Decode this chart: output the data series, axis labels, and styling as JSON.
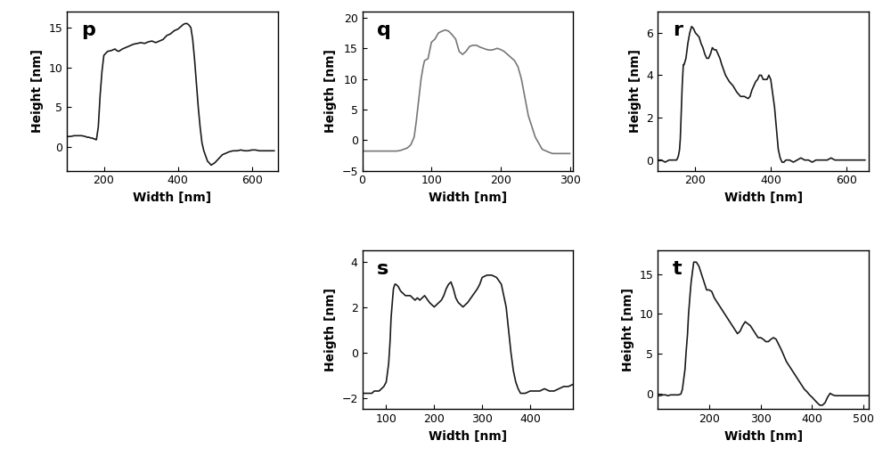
{
  "p": {
    "label": "p",
    "xlabel": "Width [nm]",
    "ylabel": "Height [nm]",
    "xlim": [
      100,
      670
    ],
    "ylim": [
      -3,
      17
    ],
    "yticks": [
      0,
      5,
      10,
      15
    ],
    "xticks": [
      200,
      400,
      600
    ],
    "line_color": "#1a1a1a",
    "x": [
      100,
      110,
      120,
      130,
      140,
      150,
      155,
      160,
      165,
      170,
      172,
      175,
      178,
      180,
      185,
      190,
      195,
      200,
      210,
      220,
      225,
      230,
      235,
      240,
      250,
      260,
      270,
      280,
      290,
      300,
      310,
      320,
      330,
      340,
      350,
      360,
      370,
      380,
      390,
      395,
      400,
      405,
      410,
      415,
      420,
      425,
      430,
      435,
      440,
      445,
      450,
      455,
      460,
      465,
      470,
      480,
      490,
      500,
      510,
      520,
      530,
      540,
      550,
      560,
      570,
      580,
      590,
      600,
      610,
      620,
      630,
      640,
      650,
      660
    ],
    "y": [
      1.3,
      1.3,
      1.4,
      1.4,
      1.4,
      1.3,
      1.2,
      1.2,
      1.1,
      1.1,
      1.0,
      1.0,
      0.9,
      0.9,
      2.5,
      6.5,
      9.5,
      11.5,
      12.0,
      12.1,
      12.2,
      12.3,
      12.1,
      12.0,
      12.3,
      12.5,
      12.7,
      12.9,
      13.0,
      13.1,
      13.0,
      13.2,
      13.3,
      13.1,
      13.3,
      13.5,
      14.0,
      14.2,
      14.6,
      14.7,
      14.8,
      15.0,
      15.2,
      15.4,
      15.5,
      15.5,
      15.3,
      15.0,
      13.5,
      11.0,
      8.0,
      5.0,
      2.5,
      0.5,
      -0.5,
      -1.8,
      -2.3,
      -2.0,
      -1.5,
      -1.0,
      -0.8,
      -0.6,
      -0.5,
      -0.5,
      -0.4,
      -0.5,
      -0.5,
      -0.4,
      -0.4,
      -0.5,
      -0.5,
      -0.5,
      -0.5,
      -0.5
    ]
  },
  "q": {
    "label": "q",
    "xlabel": "Width [nm]",
    "ylabel": "Heigth [nm]",
    "xlim": [
      0,
      305
    ],
    "ylim": [
      -5,
      21
    ],
    "yticks": [
      -5,
      0,
      5,
      10,
      15,
      20
    ],
    "xticks": [
      0,
      100,
      200,
      300
    ],
    "line_color": "#777777",
    "x": [
      0,
      5,
      10,
      15,
      20,
      25,
      30,
      35,
      40,
      45,
      50,
      55,
      60,
      65,
      70,
      75,
      78,
      80,
      83,
      85,
      88,
      90,
      95,
      100,
      105,
      110,
      115,
      120,
      125,
      130,
      135,
      140,
      145,
      150,
      155,
      160,
      165,
      170,
      175,
      180,
      185,
      190,
      195,
      200,
      205,
      210,
      215,
      220,
      225,
      230,
      235,
      240,
      250,
      260,
      270,
      275,
      280,
      285,
      290,
      295,
      300
    ],
    "y": [
      -1.8,
      -1.8,
      -1.8,
      -1.8,
      -1.8,
      -1.8,
      -1.8,
      -1.8,
      -1.8,
      -1.8,
      -1.8,
      -1.7,
      -1.5,
      -1.3,
      -0.8,
      0.5,
      3.0,
      5.0,
      8.0,
      10.0,
      12.0,
      13.0,
      13.3,
      16.0,
      16.5,
      17.5,
      17.8,
      18.0,
      17.8,
      17.2,
      16.5,
      14.5,
      14.0,
      14.5,
      15.3,
      15.5,
      15.5,
      15.2,
      15.0,
      14.8,
      14.7,
      14.8,
      15.0,
      14.8,
      14.5,
      14.0,
      13.5,
      13.0,
      12.0,
      10.0,
      7.0,
      4.0,
      0.5,
      -1.5,
      -2.0,
      -2.2,
      -2.2,
      -2.2,
      -2.2,
      -2.2,
      -2.2
    ]
  },
  "r": {
    "label": "r",
    "xlabel": "Width [nm]",
    "ylabel": "Height [nm]",
    "xlim": [
      100,
      660
    ],
    "ylim": [
      -0.5,
      7
    ],
    "yticks": [
      0,
      2,
      4,
      6
    ],
    "xticks": [
      200,
      400,
      600
    ],
    "line_color": "#1a1a1a",
    "x": [
      100,
      110,
      120,
      130,
      140,
      150,
      153,
      155,
      158,
      160,
      163,
      165,
      168,
      170,
      175,
      180,
      185,
      190,
      195,
      200,
      205,
      210,
      215,
      220,
      225,
      230,
      235,
      240,
      245,
      250,
      255,
      260,
      265,
      270,
      280,
      290,
      300,
      310,
      320,
      330,
      340,
      345,
      350,
      355,
      360,
      365,
      370,
      375,
      380,
      385,
      390,
      395,
      400,
      410,
      415,
      420,
      425,
      430,
      435,
      440,
      450,
      460,
      470,
      480,
      490,
      500,
      510,
      520,
      530,
      540,
      550,
      560,
      570,
      580,
      590,
      600,
      610,
      620,
      630,
      640,
      650
    ],
    "y": [
      0.0,
      0.0,
      -0.1,
      0.0,
      0.0,
      0.0,
      0.1,
      0.2,
      0.5,
      1.0,
      2.5,
      3.5,
      4.5,
      4.5,
      4.8,
      5.5,
      6.0,
      6.3,
      6.2,
      6.0,
      5.9,
      5.8,
      5.5,
      5.3,
      5.0,
      4.8,
      4.8,
      5.0,
      5.3,
      5.2,
      5.2,
      5.0,
      4.8,
      4.5,
      4.0,
      3.7,
      3.5,
      3.2,
      3.0,
      3.0,
      2.9,
      3.0,
      3.3,
      3.5,
      3.7,
      3.8,
      4.0,
      4.0,
      3.8,
      3.8,
      3.8,
      4.0,
      3.8,
      2.5,
      1.5,
      0.5,
      0.1,
      -0.1,
      -0.1,
      0.0,
      0.0,
      -0.1,
      0.0,
      0.1,
      0.0,
      0.0,
      -0.1,
      0.0,
      0.0,
      0.0,
      0.0,
      0.1,
      0.0,
      0.0,
      0.0,
      0.0,
      0.0,
      0.0,
      0.0,
      0.0,
      0.0
    ]
  },
  "s": {
    "label": "s",
    "xlabel": "Width [nm]",
    "ylabel": "Heigth [nm]",
    "xlim": [
      50,
      490
    ],
    "ylim": [
      -2.5,
      4.5
    ],
    "yticks": [
      -2,
      0,
      2,
      4
    ],
    "xticks": [
      100,
      200,
      300,
      400
    ],
    "line_color": "#1a1a1a",
    "x": [
      50,
      55,
      60,
      65,
      70,
      75,
      80,
      85,
      90,
      95,
      100,
      105,
      108,
      110,
      113,
      115,
      118,
      120,
      125,
      130,
      135,
      140,
      145,
      150,
      155,
      160,
      165,
      170,
      175,
      180,
      190,
      200,
      210,
      215,
      220,
      225,
      230,
      235,
      240,
      245,
      250,
      255,
      260,
      270,
      280,
      290,
      295,
      300,
      310,
      320,
      330,
      340,
      345,
      350,
      355,
      360,
      365,
      370,
      375,
      380,
      390,
      400,
      410,
      420,
      430,
      440,
      450,
      460,
      470,
      480,
      490
    ],
    "y": [
      -1.8,
      -1.8,
      -1.8,
      -1.8,
      -1.8,
      -1.7,
      -1.7,
      -1.7,
      -1.6,
      -1.5,
      -1.3,
      -0.5,
      0.5,
      1.5,
      2.3,
      2.8,
      3.0,
      3.0,
      2.9,
      2.7,
      2.6,
      2.5,
      2.5,
      2.5,
      2.4,
      2.3,
      2.4,
      2.3,
      2.4,
      2.5,
      2.2,
      2.0,
      2.2,
      2.3,
      2.5,
      2.8,
      3.0,
      3.1,
      2.8,
      2.4,
      2.2,
      2.1,
      2.0,
      2.2,
      2.5,
      2.8,
      3.0,
      3.3,
      3.4,
      3.4,
      3.3,
      3.0,
      2.5,
      2.0,
      1.0,
      0.0,
      -0.8,
      -1.3,
      -1.6,
      -1.8,
      -1.8,
      -1.7,
      -1.7,
      -1.7,
      -1.6,
      -1.7,
      -1.7,
      -1.6,
      -1.5,
      -1.5,
      -1.4
    ]
  },
  "t": {
    "label": "t",
    "xlabel": "Width [nm]",
    "ylabel": "Height [nm]",
    "xlim": [
      100,
      510
    ],
    "ylim": [
      -2,
      18
    ],
    "yticks": [
      0,
      5,
      10,
      15
    ],
    "xticks": [
      200,
      300,
      400,
      500
    ],
    "line_color": "#1a1a1a",
    "x": [
      100,
      105,
      110,
      115,
      120,
      125,
      130,
      135,
      140,
      145,
      148,
      150,
      153,
      155,
      158,
      160,
      163,
      165,
      168,
      170,
      175,
      180,
      185,
      190,
      195,
      200,
      205,
      210,
      215,
      220,
      225,
      230,
      235,
      240,
      245,
      250,
      255,
      260,
      265,
      270,
      280,
      285,
      290,
      295,
      300,
      305,
      310,
      315,
      320,
      325,
      330,
      340,
      350,
      355,
      360,
      365,
      370,
      375,
      380,
      385,
      390,
      395,
      400,
      410,
      415,
      420,
      425,
      430,
      435,
      440,
      445,
      450,
      460,
      470,
      480,
      490,
      500,
      510
    ],
    "y": [
      -0.3,
      -0.3,
      -0.2,
      -0.2,
      -0.3,
      -0.2,
      -0.2,
      -0.2,
      -0.2,
      -0.1,
      0.5,
      1.5,
      3.0,
      5.0,
      7.5,
      10.0,
      12.5,
      14.0,
      15.5,
      16.5,
      16.5,
      16.0,
      15.0,
      14.0,
      13.0,
      13.0,
      12.8,
      12.0,
      11.5,
      11.0,
      10.5,
      10.0,
      9.5,
      9.0,
      8.5,
      8.0,
      7.5,
      7.8,
      8.5,
      9.0,
      8.5,
      8.0,
      7.5,
      7.0,
      7.0,
      6.8,
      6.5,
      6.5,
      6.8,
      7.0,
      6.8,
      5.5,
      4.0,
      3.5,
      3.0,
      2.5,
      2.0,
      1.5,
      1.0,
      0.5,
      0.2,
      -0.2,
      -0.5,
      -1.2,
      -1.5,
      -1.5,
      -1.2,
      -0.5,
      0.0,
      -0.2,
      -0.3,
      -0.3,
      -0.3,
      -0.3,
      -0.3,
      -0.3,
      -0.3,
      -0.3
    ]
  },
  "fig_bg": "#ffffff",
  "line_width": 1.2,
  "tick_label_fontsize": 9,
  "axis_label_fontsize": 10,
  "panel_label_fontsize": 16,
  "panel_label_fontweight": "bold"
}
